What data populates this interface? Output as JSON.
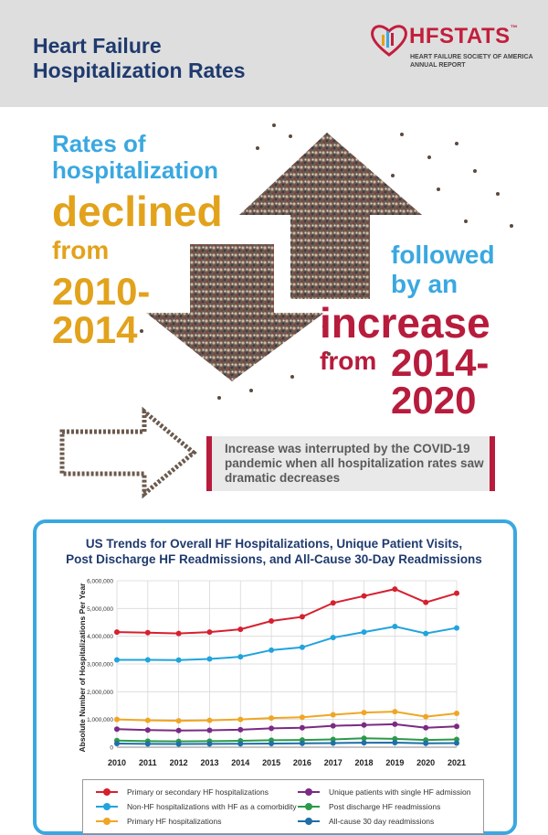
{
  "header": {
    "title_line1": "Heart Failure",
    "title_line2": "Hospitalization Rates",
    "logo_hf": "HF",
    "logo_stats": "STATS",
    "logo_tm": "™",
    "logo_sub1": "HEART FAILURE SOCIETY OF AMERICA",
    "logo_sub2": "ANNUAL REPORT"
  },
  "hero": {
    "line1": "Rates of",
    "line2": "hospitalization",
    "declined": "declined",
    "from1": "from",
    "years1a": "2010-",
    "years1b": "2014",
    "followed": "followed",
    "by_an": "by an",
    "increase": "increase",
    "from2": "from",
    "years2a": "2014-",
    "years2b": "2020"
  },
  "callout": {
    "text": "Increase was interrupted by the COVID-19 pandemic when all hospitalization rates saw dramatic decreases"
  },
  "colors": {
    "red": "#d6202f",
    "blue": "#20a4dd",
    "gold": "#f0a623",
    "purple": "#7b2a84",
    "green": "#2b9a49",
    "navy": "#1f6fa8"
  },
  "chart_data": {
    "type": "line",
    "title_line1": "US Trends for Overall HF Hospitalizations, Unique Patient Visits,",
    "title_line2": "Post Discharge HF Readmissions, and All-Cause 30-Day Readmissions",
    "ylabel": "Absolute Number of Hospitalizations Per Year",
    "xlabel": "",
    "ylim": [
      0,
      6000000
    ],
    "yticks": [
      0,
      1000000,
      2000000,
      3000000,
      4000000,
      5000000,
      6000000
    ],
    "ytick_labels": [
      "0",
      "1,000,000",
      "2,000,000",
      "3,000,000",
      "4,000,000",
      "5,000,000",
      "6,000,000"
    ],
    "x": [
      "2010",
      "2011",
      "2012",
      "2013",
      "2014",
      "2015",
      "2016",
      "2017",
      "2018",
      "2019",
      "2020",
      "2021"
    ],
    "series": [
      {
        "name": "Primary or secondary HF hospitalizations",
        "color": "#d6202f",
        "values": [
          4150000,
          4130000,
          4100000,
          4150000,
          4250000,
          4550000,
          4700000,
          5200000,
          5450000,
          5700000,
          5220000,
          5550000
        ]
      },
      {
        "name": "Non-HF hospitalizations with HF as a comorbidity",
        "color": "#20a4dd",
        "values": [
          3150000,
          3150000,
          3140000,
          3180000,
          3260000,
          3500000,
          3600000,
          3950000,
          4150000,
          4350000,
          4100000,
          4300000
        ]
      },
      {
        "name": "Primary HF hospitalizations",
        "color": "#f0a623",
        "values": [
          1000000,
          970000,
          950000,
          970000,
          1000000,
          1050000,
          1080000,
          1170000,
          1250000,
          1280000,
          1100000,
          1220000
        ]
      },
      {
        "name": "Unique patients with single HF admission",
        "color": "#7b2a84",
        "values": [
          650000,
          620000,
          600000,
          610000,
          630000,
          680000,
          700000,
          770000,
          800000,
          830000,
          700000,
          750000
        ]
      },
      {
        "name": "Post discharge HF readmissions",
        "color": "#2b9a49",
        "values": [
          240000,
          220000,
          210000,
          220000,
          230000,
          250000,
          260000,
          280000,
          320000,
          300000,
          260000,
          280000
        ]
      },
      {
        "name": "All-cause 30 day readmissions",
        "color": "#1f6fa8",
        "values": [
          130000,
          120000,
          115000,
          120000,
          125000,
          130000,
          140000,
          150000,
          160000,
          165000,
          140000,
          150000
        ]
      }
    ]
  }
}
